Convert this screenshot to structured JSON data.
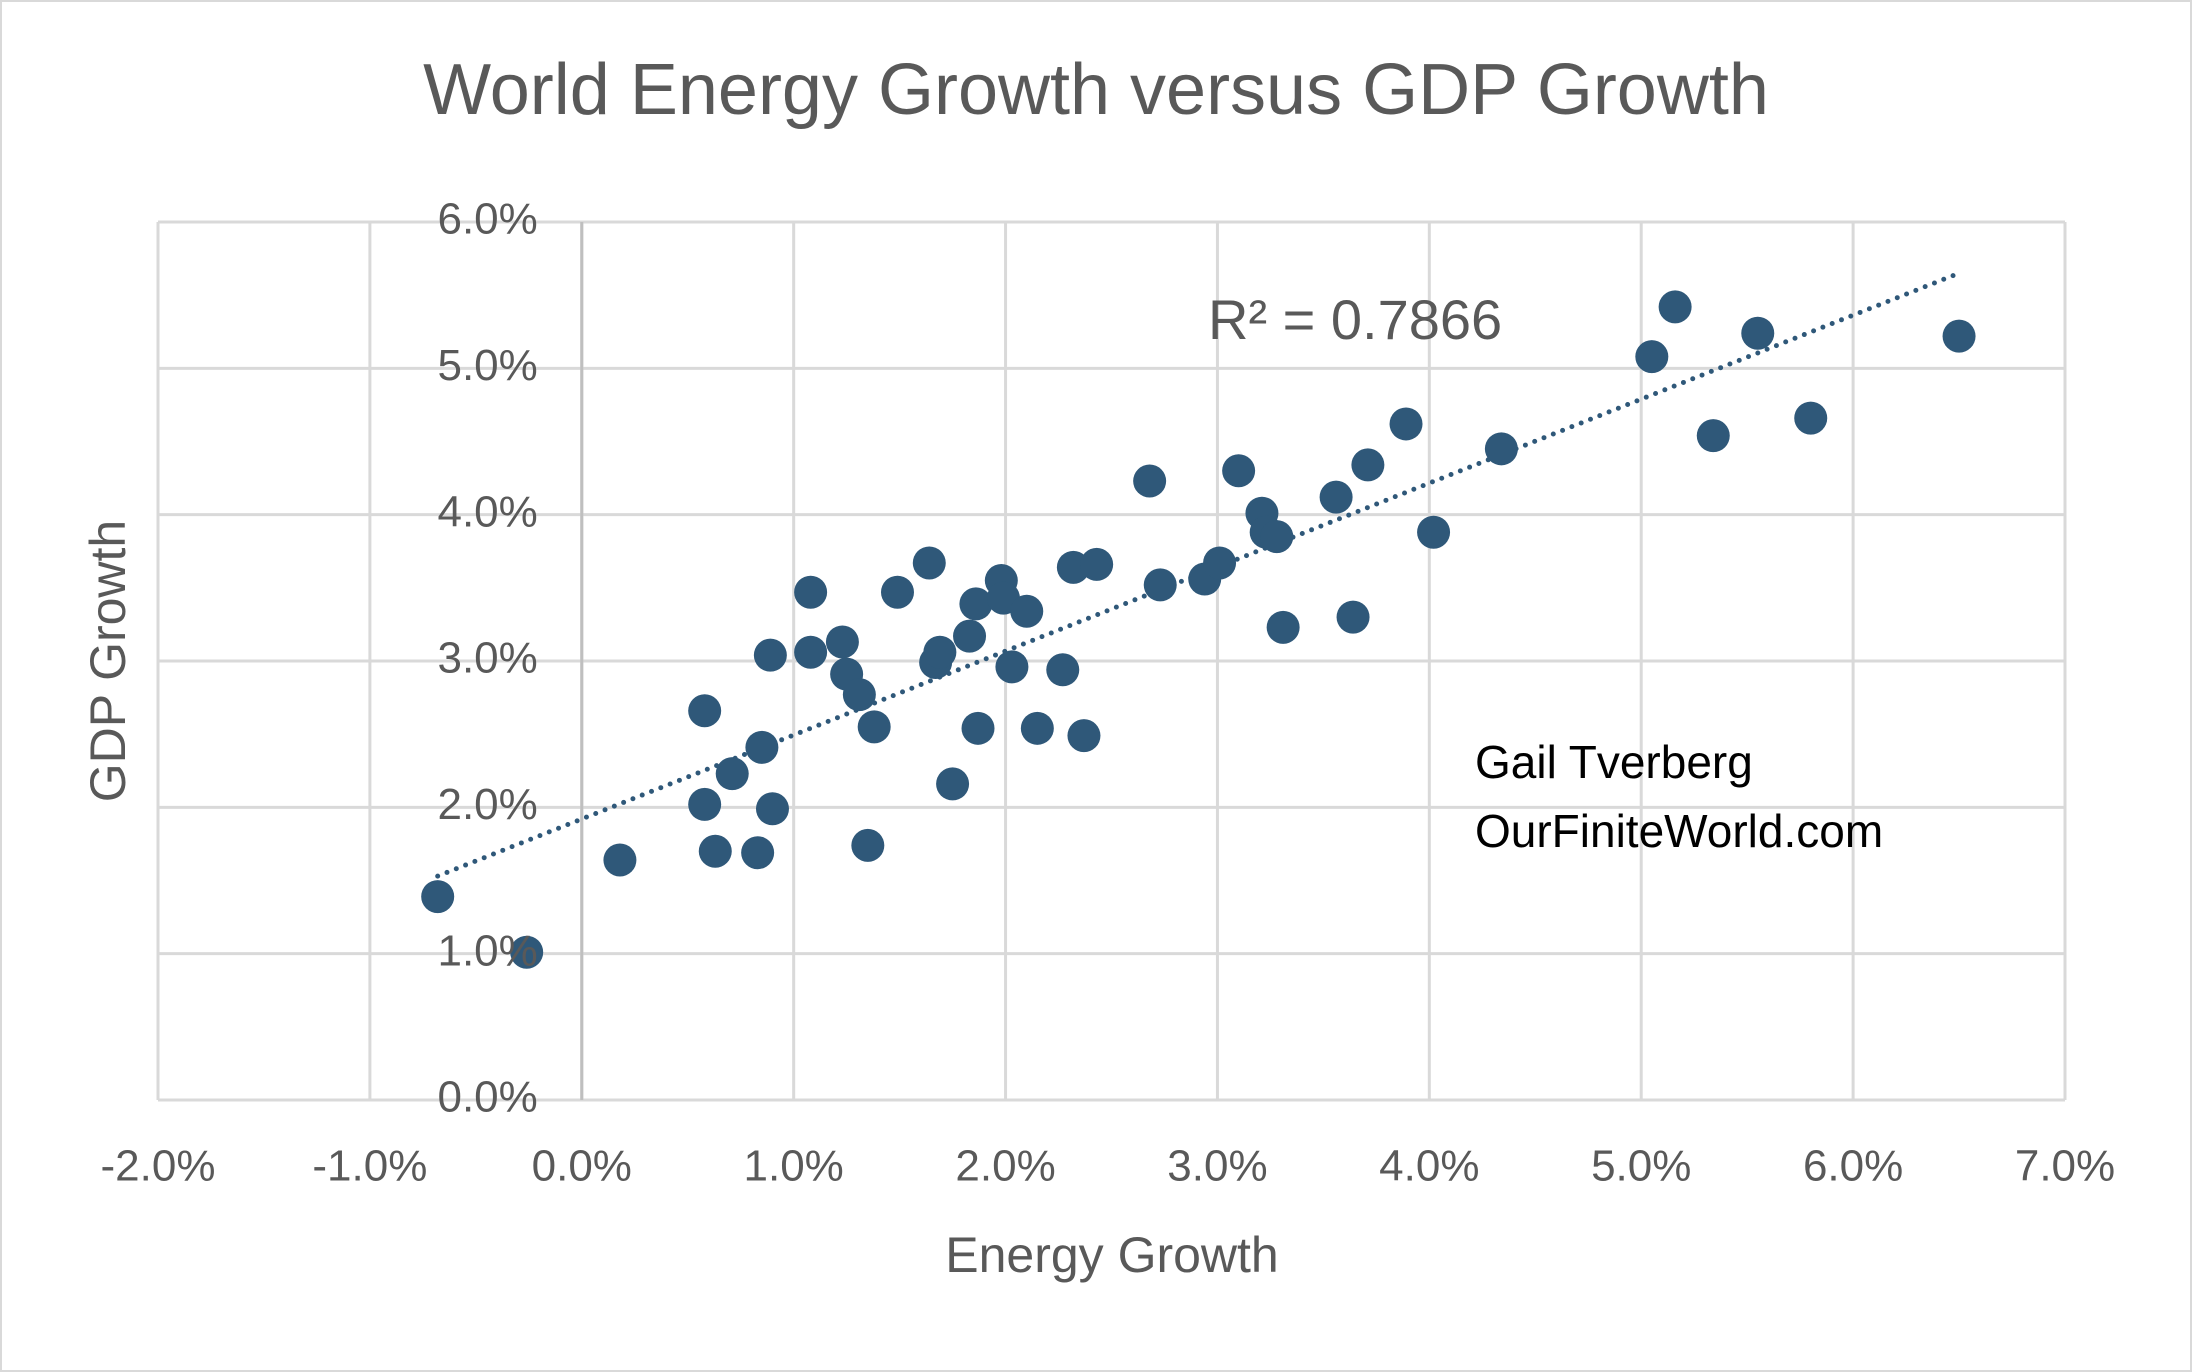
{
  "chart_data": {
    "type": "scatter",
    "title": "World Energy Growth versus GDP Growth",
    "x_label": "Energy Growth",
    "y_label": "GDP Growth",
    "xlim": [
      -2,
      7
    ],
    "ylim": [
      0,
      6
    ],
    "xticks": [
      {
        "value": -2,
        "label": "-2.0%"
      },
      {
        "value": -1,
        "label": "-1.0%"
      },
      {
        "value": 0,
        "label": "0.0%"
      },
      {
        "value": 1,
        "label": "1.0%"
      },
      {
        "value": 2,
        "label": "2.0%"
      },
      {
        "value": 3,
        "label": "3.0%"
      },
      {
        "value": 4,
        "label": "4.0%"
      },
      {
        "value": 5,
        "label": "5.0%"
      },
      {
        "value": 6,
        "label": "6.0%"
      },
      {
        "value": 7,
        "label": "7.0%"
      }
    ],
    "yticks": [
      {
        "value": 0,
        "label": "0.0%"
      },
      {
        "value": 1,
        "label": "1.0%"
      },
      {
        "value": 2,
        "label": "2.0%"
      },
      {
        "value": 3,
        "label": "3.0%"
      },
      {
        "value": 4,
        "label": "4.0%"
      },
      {
        "value": 5,
        "label": "5.0%"
      },
      {
        "value": 6,
        "label": "6.0%"
      }
    ],
    "grid": true,
    "color": "#2f5879",
    "x": [
      -0.68,
      -0.26,
      0.18,
      0.58,
      0.58,
      0.63,
      0.71,
      0.83,
      0.85,
      0.89,
      0.9,
      1.08,
      1.08,
      1.23,
      1.25,
      1.31,
      1.35,
      1.38,
      1.49,
      1.64,
      1.67,
      1.69,
      1.75,
      1.83,
      1.86,
      1.87,
      1.98,
      1.99,
      2.03,
      2.1,
      2.15,
      2.27,
      2.32,
      2.37,
      2.43,
      2.68,
      2.73,
      2.94,
      3.01,
      3.1,
      3.21,
      3.23,
      3.28,
      3.31,
      3.56,
      3.64,
      3.71,
      3.89,
      4.02,
      4.34,
      5.05,
      5.16,
      5.34,
      5.55,
      5.8,
      6.5
    ],
    "values": [
      1.39,
      1.01,
      1.64,
      2.66,
      2.02,
      1.7,
      2.23,
      1.69,
      2.41,
      3.04,
      1.99,
      3.47,
      3.06,
      3.13,
      2.91,
      2.77,
      1.74,
      2.55,
      3.47,
      3.67,
      2.99,
      3.06,
      2.16,
      3.17,
      3.39,
      2.54,
      3.55,
      3.43,
      2.96,
      3.34,
      2.54,
      2.94,
      3.64,
      2.49,
      3.66,
      4.23,
      3.52,
      3.56,
      3.67,
      4.3,
      4.01,
      3.88,
      3.85,
      3.23,
      4.12,
      3.3,
      4.34,
      4.62,
      3.88,
      4.45,
      5.08,
      5.42,
      4.54,
      5.24,
      4.66,
      5.22
    ],
    "trendline": {
      "x": [
        -0.68,
        6.5
      ],
      "values": [
        1.53,
        5.65
      ]
    },
    "r_squared_label": "R² = 0.7866",
    "annotations": [
      "Gail Tverberg",
      "OurFiniteWorld.com"
    ]
  }
}
